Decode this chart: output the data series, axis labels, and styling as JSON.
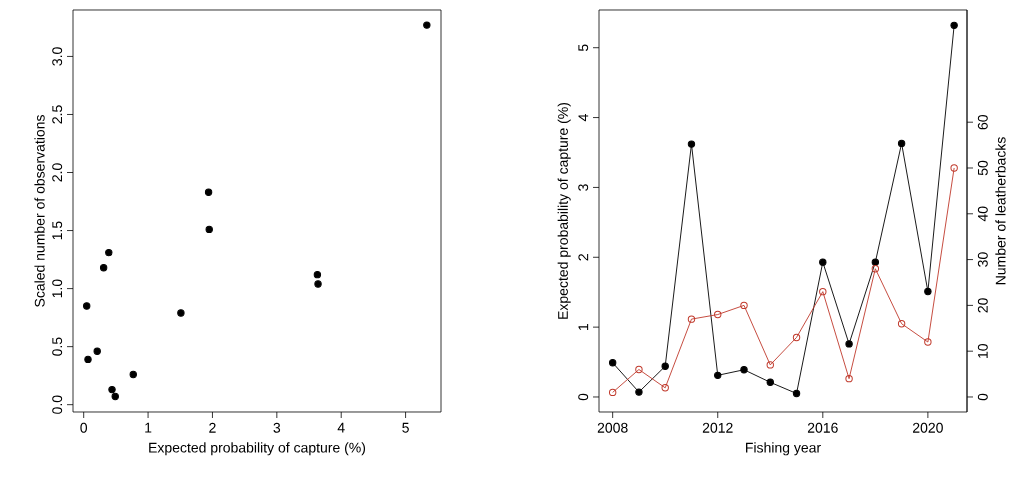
{
  "chart_data": [
    {
      "type": "scatter",
      "xlabel": "Expected probability of capture (%)",
      "ylabel": "Scaled number of observations",
      "x": [
        0.047,
        0.067,
        0.21,
        0.31,
        0.39,
        0.44,
        0.49,
        0.77,
        1.51,
        1.94,
        1.95,
        3.63,
        3.64,
        5.33
      ],
      "values": [
        0.85,
        0.39,
        0.46,
        1.18,
        1.31,
        0.13,
        0.07,
        0.26,
        0.79,
        1.83,
        1.51,
        1.12,
        1.04,
        3.27
      ],
      "color": "#000000",
      "marker": "circle",
      "grid": false,
      "xlim": [
        -0.166,
        5.55
      ],
      "ylim": [
        -0.063,
        3.4
      ],
      "xticks": [
        0,
        1,
        2,
        3,
        4,
        5
      ],
      "yticks": [
        {
          "value": 0,
          "label": "0.0"
        },
        {
          "value": 0.5,
          "label": "0.5"
        },
        {
          "value": 1,
          "label": "1.0"
        },
        {
          "value": 1.5,
          "label": "1.5"
        },
        {
          "value": 2,
          "label": "2.0"
        },
        {
          "value": 2.5,
          "label": "2.5"
        },
        {
          "value": 3,
          "label": "3.0"
        }
      ]
    },
    {
      "type": "line",
      "xlabel": "Fishing year",
      "ylabel": "Expected probability of capture (%)",
      "y2label": "Number of leatherbacks",
      "x": [
        2008,
        2009,
        2010,
        2011,
        2012,
        2013,
        2014,
        2015,
        2016,
        2017,
        2018,
        2019,
        2020,
        2021
      ],
      "series": [
        {
          "color": "#000000",
          "values": [
            0.49,
            0.07,
            0.44,
            3.62,
            0.31,
            0.39,
            0.21,
            0.05,
            1.93,
            0.76,
            1.93,
            3.63,
            1.51,
            5.32
          ]
        },
        {
          "color": "#c0392b",
          "axis": "y2",
          "values": [
            1,
            6,
            2,
            17,
            18,
            20,
            7,
            13,
            23,
            4,
            28,
            16,
            12,
            50
          ]
        }
      ],
      "marker": "circle",
      "line_style": "solid",
      "grid": false,
      "xlim": [
        2007.48,
        2021.49
      ],
      "ylim": [
        -0.215,
        5.54
      ],
      "y2lim": [
        -3.28,
        84.5
      ],
      "xticks": [
        2008,
        2012,
        2016,
        2020
      ],
      "yticks": [
        0,
        1,
        2,
        3,
        4,
        5
      ],
      "y2ticks": [
        0,
        10,
        20,
        30,
        40,
        50,
        60
      ]
    }
  ]
}
